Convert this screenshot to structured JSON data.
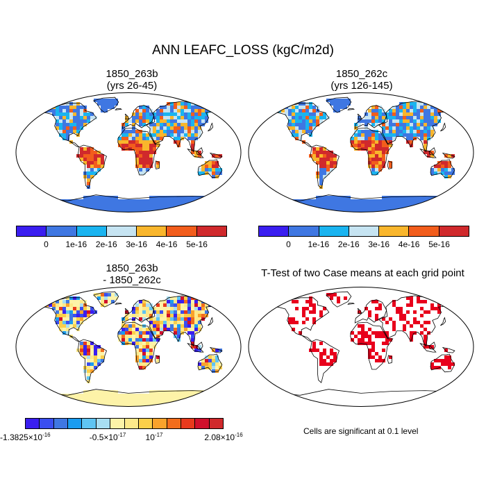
{
  "figure_title": "ANN LEAFC_LOSS (kgC/m2d)",
  "panels": [
    {
      "id": "p1",
      "title_line1": "1850_263b",
      "title_line2": "(yrs 26-45)"
    },
    {
      "id": "p2",
      "title_line1": "1850_262c",
      "title_line2": "(yrs 126-145)"
    },
    {
      "id": "p3",
      "title_line1": "1850_263b",
      "title_line2": "- 1850_262c"
    },
    {
      "id": "p4",
      "title_line1": "T-Test of two Case means at each grid point"
    }
  ],
  "colorbar_top": {
    "colors": [
      "#3a1ef0",
      "#3f77e2",
      "#1ab4f0",
      "#c6e4f2",
      "#f9b62c",
      "#f25d1c",
      "#d0292c"
    ],
    "labels": [
      "0",
      "1e-16",
      "2e-16",
      "3e-16",
      "4e-16",
      "5e-16"
    ]
  },
  "colorbar_diff": {
    "colors": [
      "#3a1ef0",
      "#3a4ef0",
      "#3f77e2",
      "#1a9cf0",
      "#5fc4f2",
      "#a8def2",
      "#fdf3a8",
      "#fde98a",
      "#fbcf4a",
      "#f9a22c",
      "#f26d1c",
      "#e83a1c",
      "#d0102c",
      "#d0292c"
    ],
    "labels": [
      {
        "base": "-1.3825×10",
        "exp": "-16"
      },
      {
        "base": "-0.5×10",
        "exp": "-17"
      },
      {
        "base": "10",
        "exp": "-17"
      },
      {
        "base": "2.08×10",
        "exp": "-16"
      }
    ]
  },
  "ttest_note": "Cells are significant at 0.1 level",
  "map_colors": {
    "ocean": "#ffffff",
    "land_base": "#3f77e2",
    "antarctica": "#3f77e2",
    "diff_base": "#fdf3a8",
    "sig": "#e8001c"
  }
}
